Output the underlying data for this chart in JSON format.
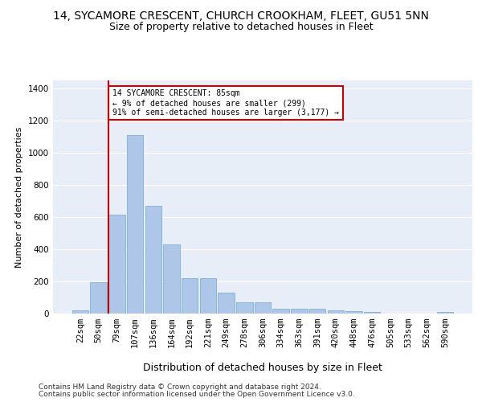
{
  "title1": "14, SYCAMORE CRESCENT, CHURCH CROOKHAM, FLEET, GU51 5NN",
  "title2": "Size of property relative to detached houses in Fleet",
  "xlabel": "Distribution of detached houses by size in Fleet",
  "ylabel": "Number of detached properties",
  "footer1": "Contains HM Land Registry data © Crown copyright and database right 2024.",
  "footer2": "Contains public sector information licensed under the Open Government Licence v3.0.",
  "bar_labels": [
    "22sqm",
    "50sqm",
    "79sqm",
    "107sqm",
    "136sqm",
    "164sqm",
    "192sqm",
    "221sqm",
    "249sqm",
    "278sqm",
    "306sqm",
    "334sqm",
    "363sqm",
    "391sqm",
    "420sqm",
    "448sqm",
    "476sqm",
    "505sqm",
    "533sqm",
    "562sqm",
    "590sqm"
  ],
  "bar_values": [
    20,
    195,
    615,
    1110,
    670,
    430,
    220,
    220,
    130,
    72,
    72,
    32,
    32,
    28,
    18,
    14,
    8,
    2,
    0,
    0,
    10
  ],
  "bar_color": "#aec6e8",
  "bar_edge_color": "#6aaad4",
  "vline_color": "#cc0000",
  "annotation_text": "14 SYCAMORE CRESCENT: 85sqm\n← 9% of detached houses are smaller (299)\n91% of semi-detached houses are larger (3,177) →",
  "annotation_box_color": "#cc0000",
  "ylim": [
    0,
    1450
  ],
  "yticks": [
    0,
    200,
    400,
    600,
    800,
    1000,
    1200,
    1400
  ],
  "background_color": "#e8eef8",
  "grid_color": "#ffffff",
  "title1_fontsize": 10,
  "title2_fontsize": 9,
  "xlabel_fontsize": 9,
  "ylabel_fontsize": 8,
  "tick_fontsize": 7.5,
  "footer_fontsize": 6.5
}
